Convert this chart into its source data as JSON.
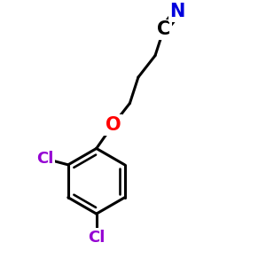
{
  "background": "#ffffff",
  "bond_color": "#000000",
  "bond_lw": 2.2,
  "atoms": {
    "N": {
      "color": "#0000dd",
      "fontsize": 15,
      "fontweight": "bold"
    },
    "C": {
      "color": "#000000",
      "fontsize": 15,
      "fontweight": "bold"
    },
    "O": {
      "color": "#ff0000",
      "fontsize": 15,
      "fontweight": "bold"
    },
    "Cl": {
      "color": "#9400d3",
      "fontsize": 13,
      "fontweight": "bold"
    }
  }
}
